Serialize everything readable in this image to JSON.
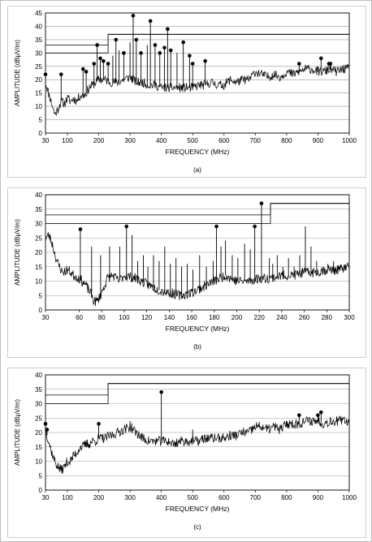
{
  "chart_data": [
    {
      "type": "line",
      "xlabel": "FREQUENCY (MHz)",
      "ylabel": "AMPLITUDE (dBμV/m)",
      "caption": "(a)",
      "xlim": [
        30,
        1000
      ],
      "ylim": [
        0,
        45
      ],
      "xticks": [
        30,
        100,
        200,
        300,
        400,
        500,
        600,
        700,
        800,
        900,
        1000
      ],
      "yticks": [
        0,
        5,
        10,
        15,
        20,
        25,
        30,
        35,
        40,
        45
      ],
      "grid": "horizontal",
      "limit_lines": [
        {
          "x": [
            30,
            230,
            230,
            1000
          ],
          "y": [
            30,
            30,
            37,
            37
          ]
        },
        {
          "x": [
            30,
            230,
            230,
            1000
          ],
          "y": [
            33,
            33,
            37,
            37
          ]
        }
      ],
      "trace": {
        "x": [
          30,
          40,
          50,
          60,
          70,
          80,
          90,
          100,
          110,
          120,
          130,
          140,
          150,
          160,
          170,
          180,
          190,
          200,
          220,
          240,
          260,
          280,
          300,
          320,
          340,
          360,
          380,
          400,
          420,
          440,
          460,
          480,
          500,
          520,
          540,
          560,
          580,
          600,
          620,
          640,
          660,
          680,
          700,
          720,
          740,
          760,
          780,
          800,
          820,
          840,
          860,
          880,
          900,
          920,
          940,
          960,
          980,
          1000
        ],
        "y": [
          19,
          15,
          11,
          7,
          9,
          12,
          11,
          13,
          12,
          13,
          12,
          14,
          14,
          15,
          17,
          18,
          19,
          20,
          20,
          19,
          19,
          20,
          21,
          19,
          19,
          18,
          18,
          17,
          17,
          17,
          17,
          17,
          17,
          18,
          18,
          19,
          18,
          18,
          20,
          19,
          20,
          20,
          23,
          22,
          21,
          22,
          21,
          23,
          22,
          23,
          24,
          24,
          23,
          23,
          24,
          23,
          24,
          24
        ]
      },
      "peaks": {
        "x": [
          30,
          80,
          150,
          160,
          185,
          195,
          205,
          215,
          230,
          245,
          255,
          265,
          280,
          300,
          310,
          320,
          335,
          355,
          365,
          380,
          395,
          410,
          420,
          430,
          450,
          470,
          490,
          500,
          540,
          840,
          900,
          910,
          935,
          940
        ],
        "y": [
          22,
          22,
          24,
          23,
          26,
          33,
          28,
          27,
          26,
          29,
          35,
          31,
          30,
          34,
          44,
          35,
          30,
          33,
          42,
          33,
          30,
          32,
          39,
          31,
          30,
          34,
          29,
          26,
          27,
          26,
          25,
          28,
          26,
          26
        ]
      }
    },
    {
      "type": "line",
      "xlabel": "FREQUENCY (MHz)",
      "ylabel": "AMPLITUDE (dBμV/m)",
      "caption": "(b)",
      "xlim": [
        30,
        300
      ],
      "ylim": [
        0,
        40
      ],
      "xticks": [
        30,
        60,
        80,
        100,
        120,
        140,
        160,
        180,
        200,
        220,
        240,
        260,
        280,
        300
      ],
      "yticks": [
        0,
        5,
        10,
        15,
        20,
        25,
        30,
        35,
        40
      ],
      "grid": "horizontal",
      "limit_lines": [
        {
          "x": [
            30,
            230,
            230,
            300
          ],
          "y": [
            30,
            30,
            37,
            37
          ]
        },
        {
          "x": [
            30,
            230,
            230,
            300
          ],
          "y": [
            33,
            33,
            37,
            37
          ]
        }
      ],
      "trace": {
        "x": [
          30,
          33,
          36,
          40,
          45,
          50,
          55,
          60,
          65,
          70,
          73,
          76,
          80,
          85,
          90,
          95,
          100,
          110,
          120,
          130,
          140,
          150,
          160,
          170,
          180,
          190,
          200,
          210,
          220,
          230,
          240,
          250,
          260,
          270,
          280,
          290,
          300
        ],
        "y": [
          25,
          26,
          23,
          17,
          13,
          14,
          12,
          11,
          9,
          6,
          3,
          3,
          6,
          11,
          12,
          10,
          12,
          11,
          9,
          7,
          6,
          5,
          6,
          8,
          10,
          12,
          10,
          10,
          11,
          11,
          12,
          12,
          13,
          13,
          14,
          14,
          15
        ]
      },
      "peaks": {
        "x": [
          61,
          71,
          79,
          87,
          96,
          102,
          107,
          112,
          117,
          121,
          126,
          131,
          136,
          141,
          146,
          151,
          156,
          161,
          167,
          173,
          179,
          182,
          186,
          190,
          196,
          201,
          207,
          212,
          216,
          222,
          229,
          232,
          236,
          241,
          246,
          251,
          256,
          261,
          266,
          271,
          276,
          281,
          286,
          291,
          296
        ],
        "y": [
          28,
          22,
          19,
          22,
          22,
          29,
          26,
          17,
          19,
          15,
          19,
          17,
          22,
          16,
          18,
          15,
          16,
          14,
          19,
          15,
          17,
          29,
          22,
          24,
          19,
          18,
          23,
          21,
          29,
          37,
          18,
          16,
          19,
          15,
          18,
          15,
          19,
          29,
          22,
          17,
          15,
          16,
          17,
          15,
          15
        ]
      }
    },
    {
      "type": "line",
      "xlabel": "FREQUENCY (MHz)",
      "ylabel": "AMPLITUDE (dBμV/m)",
      "caption": "(c)",
      "xlim": [
        30,
        1000
      ],
      "ylim": [
        0,
        40
      ],
      "xticks": [
        30,
        100,
        200,
        300,
        400,
        500,
        600,
        700,
        800,
        900,
        1000
      ],
      "yticks": [
        0,
        5,
        10,
        15,
        20,
        25,
        30,
        35,
        40
      ],
      "grid": "horizontal",
      "limit_lines": [
        {
          "x": [
            30,
            230,
            230,
            1000
          ],
          "y": [
            30,
            30,
            37,
            37
          ]
        },
        {
          "x": [
            30,
            230,
            230,
            1000
          ],
          "y": [
            33,
            33,
            37,
            37
          ]
        }
      ],
      "trace": {
        "x": [
          30,
          40,
          50,
          60,
          70,
          80,
          90,
          100,
          110,
          120,
          130,
          140,
          150,
          160,
          170,
          180,
          190,
          200,
          220,
          240,
          260,
          280,
          300,
          320,
          340,
          360,
          380,
          400,
          420,
          440,
          460,
          480,
          500,
          520,
          540,
          560,
          580,
          600,
          620,
          640,
          660,
          680,
          700,
          720,
          740,
          760,
          780,
          800,
          820,
          840,
          860,
          880,
          900,
          920,
          940,
          960,
          980,
          1000
        ],
        "y": [
          21,
          17,
          13,
          10,
          8,
          7,
          8,
          10,
          10,
          12,
          13,
          15,
          15,
          16,
          16,
          17,
          17,
          18,
          18,
          19,
          20,
          21,
          22,
          20,
          18,
          17,
          17,
          17,
          17,
          16,
          17,
          17,
          17,
          17,
          18,
          18,
          18,
          18,
          19,
          19,
          20,
          20,
          22,
          22,
          21,
          22,
          21,
          23,
          23,
          23,
          24,
          24,
          24,
          23,
          24,
          24,
          24,
          24
        ]
      },
      "peaks": {
        "x": [
          30,
          35,
          200,
          300,
          400,
          500,
          840,
          900,
          910
        ],
        "y": [
          23,
          21,
          23,
          24,
          34,
          21,
          26,
          26,
          27
        ]
      }
    }
  ]
}
